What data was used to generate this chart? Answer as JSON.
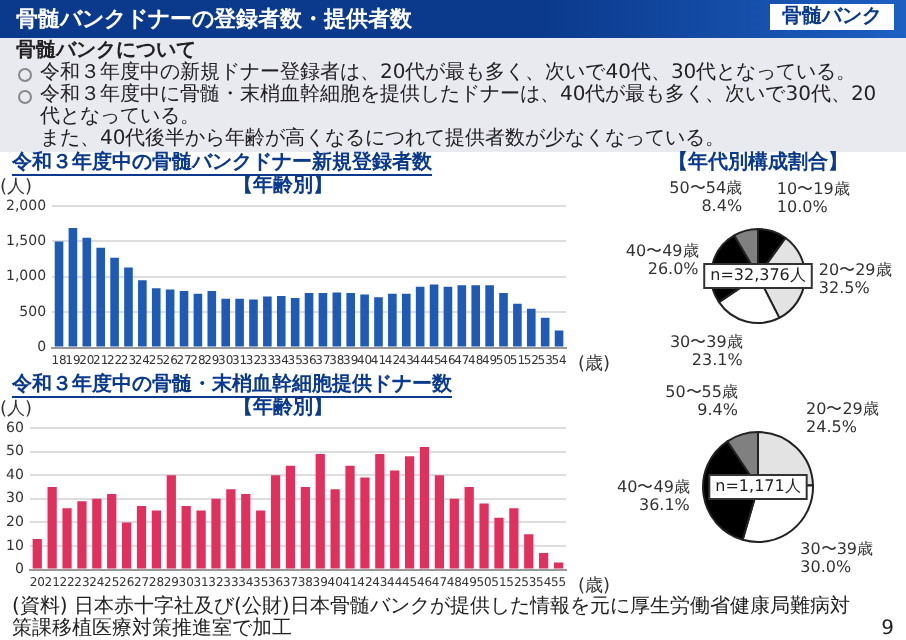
{
  "chart_data": [
    {
      "type": "other",
      "title": "骨髄バンクドナーの登録者数・提供者数",
      "annotations": [
        "骨髄バンク",
        "骨髄バンクについて",
        "令和３年度中の新規ドナー登録者は、20代が最も多く、次いで40代、30代となっている。",
        "令和３年度中に骨髄・末梢血幹細胞を提供したドナーは、40代が最も多く、次いで30代、20代となっている。",
        "また、40代後半から年齢が高くなるにつれて提供者数が少なくなっている。"
      ]
    },
    {
      "type": "bar",
      "title": "令和３年度中の骨髄バンクドナー新規登録者数",
      "subtitle": "【年齢別】",
      "ylabel": "(人)",
      "xlabel": "(歳)",
      "categories": [
        "18",
        "19",
        "20",
        "21",
        "22",
        "23",
        "24",
        "25",
        "26",
        "27",
        "28",
        "29",
        "30",
        "31",
        "32",
        "33",
        "34",
        "35",
        "36",
        "37",
        "38",
        "39",
        "40",
        "41",
        "42",
        "43",
        "44",
        "45",
        "46",
        "47",
        "48",
        "49",
        "50",
        "51",
        "52",
        "53",
        "54"
      ],
      "values": [
        1500,
        1690,
        1550,
        1410,
        1270,
        1130,
        950,
        840,
        820,
        800,
        760,
        800,
        690,
        690,
        680,
        720,
        730,
        700,
        770,
        770,
        780,
        770,
        750,
        710,
        760,
        760,
        860,
        890,
        860,
        880,
        880,
        880,
        770,
        620,
        550,
        420,
        240
      ],
      "color": "#1f5bb5",
      "ylim": [
        0,
        2000
      ],
      "yticks": [
        0,
        500,
        {
          "value": 1000,
          "label": "1,000"
        },
        {
          "value": 1500,
          "label": "1,500"
        },
        {
          "value": 2000,
          "label": "2,000"
        }
      ],
      "grid": "y"
    },
    {
      "type": "pie",
      "title": "【年代別構成割合】",
      "categories": [
        "10〜19歳",
        "20〜29歳",
        "30〜39歳",
        "40〜49歳",
        "50〜54歳"
      ],
      "values": [
        10.0,
        32.5,
        23.1,
        26.0,
        8.4
      ],
      "value_labels": [
        "10.0%",
        "32.5%",
        "23.1%",
        "26.0%",
        "8.4%"
      ],
      "colors": [
        "#000000",
        "#e3e3e3",
        "#ffffff",
        "#000000",
        "#808080"
      ],
      "annotations": [
        "n=32,376人"
      ]
    },
    {
      "type": "bar",
      "title": "令和３年度中の骨髄・末梢血幹細胞提供ドナー数",
      "subtitle": "【年齢別】",
      "ylabel": "(人)",
      "xlabel": "(歳)",
      "categories": [
        "20",
        "21",
        "22",
        "23",
        "24",
        "25",
        "26",
        "27",
        "28",
        "29",
        "30",
        "31",
        "32",
        "33",
        "34",
        "35",
        "36",
        "37",
        "38",
        "39",
        "40",
        "41",
        "42",
        "43",
        "44",
        "45",
        "46",
        "47",
        "48",
        "49",
        "50",
        "51",
        "52",
        "53",
        "54",
        "55"
      ],
      "values": [
        13,
        35,
        26,
        29,
        30,
        32,
        20,
        27,
        25,
        40,
        27,
        25,
        30,
        34,
        32,
        25,
        40,
        44,
        35,
        49,
        34,
        44,
        39,
        49,
        42,
        48,
        52,
        40,
        30,
        35,
        28,
        22,
        26,
        15,
        7,
        3
      ],
      "color": "#e0305e",
      "ylim": [
        0,
        60
      ],
      "yticks": [
        0,
        10,
        20,
        30,
        40,
        50,
        60
      ],
      "grid": "y",
      "annotations": [
        "(資料) 日本赤十字社及び(公財)日本骨髄バンクが提供した情報を元に厚生労働省健康局難病対策課移植医療対策推進室で加工",
        "9"
      ]
    },
    {
      "type": "pie",
      "categories": [
        "20〜29歳",
        "30〜39歳",
        "40〜49歳",
        "50〜55歳"
      ],
      "values": [
        24.5,
        30.0,
        36.1,
        9.4
      ],
      "value_labels": [
        "24.5%",
        "30.0%",
        "36.1%",
        "9.4%"
      ],
      "colors": [
        "#e3e3e3",
        "#ffffff",
        "#000000",
        "#808080"
      ],
      "annotations": [
        "n=1,171人"
      ]
    }
  ]
}
